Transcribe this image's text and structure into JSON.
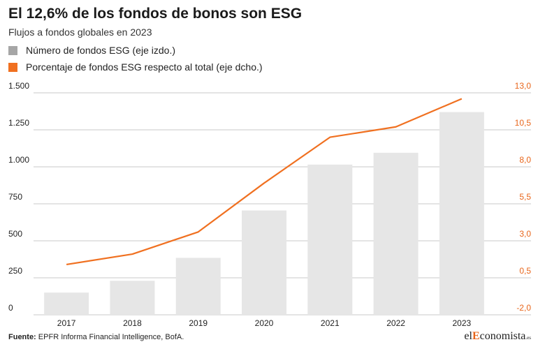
{
  "header": {
    "title": "El 12,6% de los fondos de bonos son ESG",
    "subtitle": "Flujos a fondos globales en 2023"
  },
  "legend": [
    {
      "label": "Número de fondos ESG (eje izdo.)",
      "color": "#a6a6a6"
    },
    {
      "label": "Porcentaje de fondos ESG respecto al total (eje dcho.)",
      "color": "#f07020"
    }
  ],
  "footer": {
    "source_label": "Fuente:",
    "source_text": "EPFR Informa Financial Intelligence, BofA.",
    "brand_prefix": "el",
    "brand_highlight": "E",
    "brand_rest": "conomista",
    "brand_suffix": ".es"
  },
  "colors": {
    "bar": "#e6e6e6",
    "line": "#f07020",
    "grid": "#c8c8c8",
    "right_axis": "#e8651a"
  },
  "chart_data": {
    "type": "bar",
    "categories": [
      "2017",
      "2018",
      "2019",
      "2020",
      "2021",
      "2022",
      "2023"
    ],
    "series": [
      {
        "name": "Número de fondos ESG (eje izdo.)",
        "type": "bar",
        "axis": "left",
        "values": [
          150,
          230,
          385,
          705,
          1015,
          1095,
          1370
        ]
      },
      {
        "name": "Porcentaje de fondos ESG respecto al total (eje dcho.)",
        "type": "line",
        "axis": "right",
        "values": [
          1.4,
          2.1,
          3.6,
          6.9,
          10.0,
          10.7,
          12.6
        ]
      }
    ],
    "y_left": {
      "ticks": [
        0,
        250,
        500,
        750,
        1000,
        1250,
        1500
      ],
      "tick_labels": [
        "0",
        "250",
        "500",
        "750",
        "1.000",
        "1.250",
        "1.500"
      ],
      "lim": [
        0,
        1500
      ]
    },
    "y_right": {
      "ticks": [
        -2.0,
        0.5,
        3.0,
        5.5,
        8.0,
        10.5,
        13.0
      ],
      "tick_labels": [
        "-2,0",
        "0,5",
        "3,0",
        "5,5",
        "8,0",
        "10,5",
        "13,0"
      ],
      "lim": [
        -2.0,
        13.0
      ]
    },
    "grid": true
  }
}
